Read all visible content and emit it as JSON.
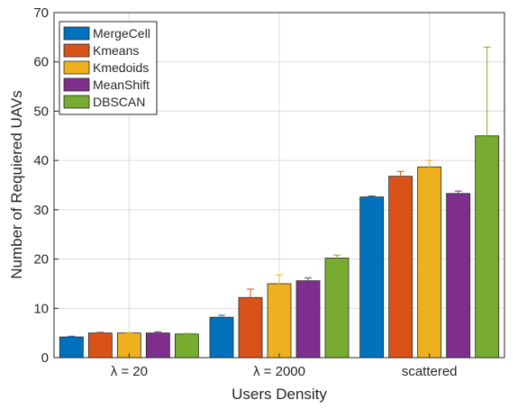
{
  "chart_data": {
    "type": "bar",
    "xlabel": "Users Density",
    "ylabel": "Number of Requiered UAVs",
    "ylim": [
      0,
      70
    ],
    "yticks": [
      0,
      10,
      20,
      30,
      40,
      50,
      60,
      70
    ],
    "grid": true,
    "legend_position": "top-left",
    "categories": [
      "λ = 20",
      "λ = 2000",
      "scattered"
    ],
    "series": [
      {
        "name": "MergeCell",
        "color": "#0072BD",
        "values": [
          4.2,
          8.2,
          32.6
        ],
        "error": [
          0.15,
          0.4,
          0.2
        ]
      },
      {
        "name": "Kmeans",
        "color": "#D95319",
        "values": [
          5.0,
          12.2,
          36.8
        ],
        "error": [
          0.15,
          1.7,
          1.0
        ]
      },
      {
        "name": "Kmedoids",
        "color": "#EDB120",
        "values": [
          5.0,
          15.0,
          38.7
        ],
        "error": [
          0.1,
          1.8,
          1.3
        ]
      },
      {
        "name": "MeanShift",
        "color": "#7E2F8E",
        "values": [
          5.0,
          15.6,
          33.3
        ],
        "error": [
          0.25,
          0.6,
          0.5
        ]
      },
      {
        "name": "DBSCAN",
        "color": "#77AC30",
        "values": [
          4.8,
          20.2,
          45.0
        ],
        "error": [
          0.1,
          0.6,
          18.0
        ]
      }
    ]
  }
}
